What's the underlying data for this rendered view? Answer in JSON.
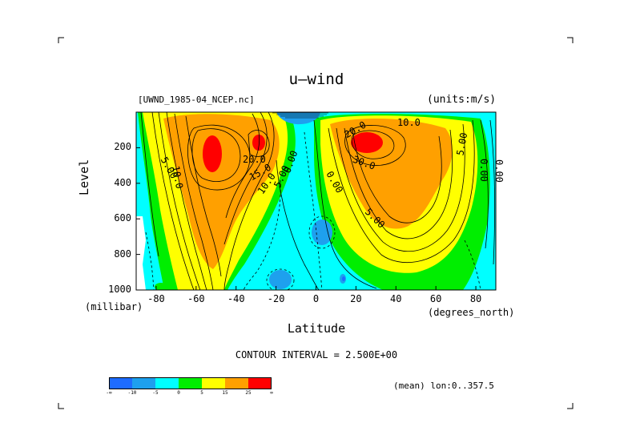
{
  "title": "u—wind",
  "file_label": "[UWND_1985-04_NCEP.nc]",
  "units_label": "(units:m/s)",
  "y_axis": {
    "label": "Level",
    "unit_label": "(millibar)",
    "ticks": [
      "200",
      "400",
      "600",
      "800",
      "1000"
    ]
  },
  "x_axis": {
    "label": "Latitude",
    "unit_label": "(degrees_north)",
    "ticks": [
      "-80",
      "-60",
      "-40",
      "-20",
      "0",
      "20",
      "40",
      "60",
      "80"
    ]
  },
  "contour_interval": "CONTOUR INTERVAL = 2.500E+00",
  "mean_label": "(mean) lon:0..357.5",
  "colorbar": {
    "colors": [
      "#1e6cff",
      "#1ea0ee",
      "#00ffff",
      "#00ee00",
      "#ffff00",
      "#ffa000",
      "#ff0000"
    ],
    "labels": [
      "-∞",
      "-10",
      "-5",
      "0",
      "5",
      "15",
      "25",
      "∞"
    ]
  },
  "contour_labels": [
    "20.0",
    "15.0",
    "10.0",
    "5.00",
    "0.00",
    "20.0",
    "30.0",
    "10.0",
    "5.00",
    "0.00",
    "0.00",
    "5.00",
    "0.00",
    "10.0",
    "5.00",
    "0.00"
  ],
  "chart_data": {
    "type": "heatmap",
    "title": "u—wind",
    "xlabel": "Latitude",
    "ylabel": "Level",
    "xlim": [
      -90,
      90
    ],
    "ylim": [
      1000,
      0
    ],
    "x_unit": "degrees_north",
    "y_unit": "millibar",
    "value_unit": "m/s",
    "contour_interval": 2.5,
    "levels": [
      -10,
      -5,
      0,
      5,
      15,
      25
    ],
    "jets": [
      {
        "lat": -53,
        "level": 250,
        "max": 25
      },
      {
        "lat": -28,
        "level": 190,
        "max": 25
      },
      {
        "lat": 25,
        "level": 190,
        "max": 30
      }
    ]
  }
}
